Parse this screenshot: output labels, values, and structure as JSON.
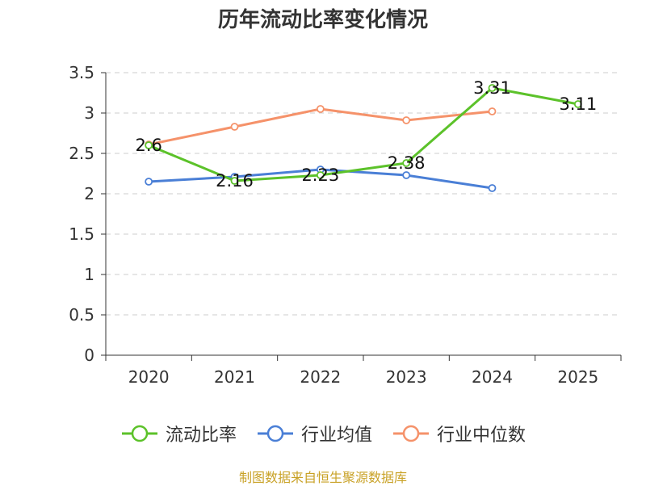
{
  "title": "历年流动比率变化情况",
  "source_note": "制图数据来自恒生聚源数据库",
  "chart_data": {
    "type": "line",
    "categories": [
      "2020",
      "2021",
      "2022",
      "2023",
      "2024",
      "2025"
    ],
    "ylim": [
      0,
      3.5
    ],
    "yticks": [
      "0",
      "0.5",
      "1",
      "1.5",
      "2",
      "2.5",
      "3",
      "3.5"
    ],
    "grid": true,
    "legend_position": "bottom",
    "series": [
      {
        "name": "流动比率",
        "color": "#5cc22a",
        "values": [
          2.6,
          2.16,
          2.23,
          2.38,
          3.31,
          3.11
        ],
        "labels": [
          "2.6",
          "2.16",
          "2.23",
          "2.38",
          "3.31",
          "3.11"
        ]
      },
      {
        "name": "行业均值",
        "color": "#4a7fd6",
        "values": [
          2.15,
          2.21,
          2.3,
          2.23,
          2.07,
          null
        ]
      },
      {
        "name": "行业中位数",
        "color": "#f5926a",
        "values": [
          2.61,
          2.83,
          3.05,
          2.91,
          3.02,
          null
        ]
      }
    ]
  }
}
